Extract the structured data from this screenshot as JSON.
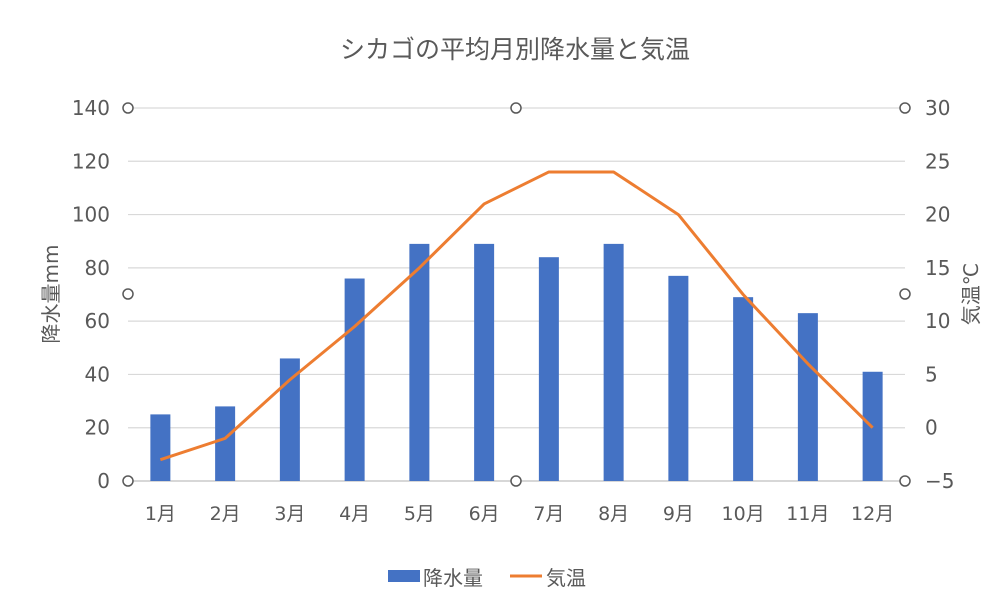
{
  "chart_data": {
    "type": "bar+line",
    "title": "シカゴの平均月別降水量と気温",
    "categories": [
      "1月",
      "2月",
      "3月",
      "4月",
      "5月",
      "6月",
      "7月",
      "8月",
      "9月",
      "10月",
      "11月",
      "12月"
    ],
    "series": [
      {
        "name": "降水量",
        "type": "bar",
        "axis": "left",
        "color": "#4472C4",
        "values": [
          25,
          28,
          46,
          76,
          89,
          89,
          84,
          89,
          77,
          69,
          63,
          41
        ]
      },
      {
        "name": "気温",
        "type": "line",
        "axis": "right",
        "color": "#ED7D31",
        "values": [
          -3,
          -1,
          4.5,
          9.5,
          15,
          21,
          24,
          24,
          20,
          12.5,
          6,
          0
        ]
      }
    ],
    "ylabel": "降水量mm",
    "y2label": "気温℃",
    "ylim": [
      0,
      140
    ],
    "y2lim": [
      -5,
      30
    ],
    "yticks": [
      0,
      20,
      40,
      60,
      80,
      100,
      120,
      140
    ],
    "y2ticks": [
      -5,
      0,
      5,
      10,
      15,
      20,
      25,
      30
    ],
    "grid": true,
    "legend": "bottom"
  }
}
